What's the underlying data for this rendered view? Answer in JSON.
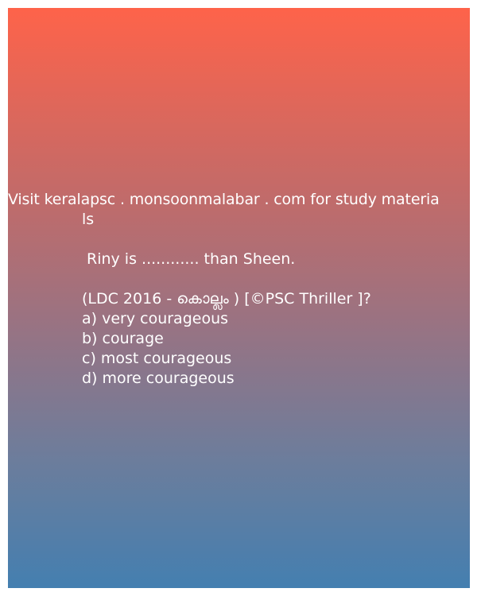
{
  "promo": {
    "line1": "Visit keralapsc . monsoonmalabar . com for study materia",
    "line2": "ls"
  },
  "question": {
    "text": "Riny is ............ than Sheen.",
    "source": "(LDC   2016 - കൊല്ലം ) [©PSC Thriller ]?"
  },
  "options": [
    "a) very courageous",
    "b) courage",
    "c) most courageous",
    "d) more courageous"
  ],
  "colors": {
    "gradient_top": "#fe634a",
    "gradient_bottom": "#447fb0",
    "text": "#ffffff"
  }
}
